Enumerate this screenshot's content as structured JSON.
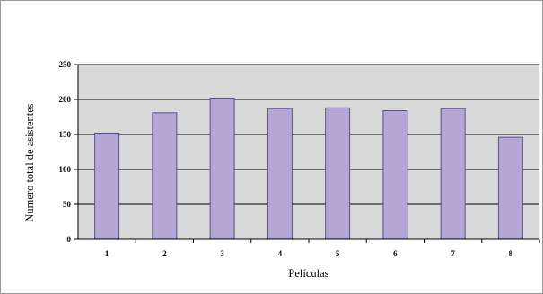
{
  "chart_data": {
    "type": "bar",
    "categories": [
      "1",
      "2",
      "3",
      "4",
      "5",
      "6",
      "7",
      "8"
    ],
    "values": [
      152,
      181,
      202,
      187,
      188,
      184,
      187,
      146
    ],
    "xlabel": "Películas",
    "ylabel": "Numero total de asistentes",
    "ylim": [
      0,
      250
    ],
    "yticks": [
      0,
      50,
      100,
      150,
      200,
      250
    ],
    "grid": true,
    "legend": "none",
    "colors": {
      "bar_fill": "#b4a7d6",
      "bar_stroke": "#5a5085",
      "plot_bg": "#d9d9d9",
      "grid": "#000000"
    }
  }
}
